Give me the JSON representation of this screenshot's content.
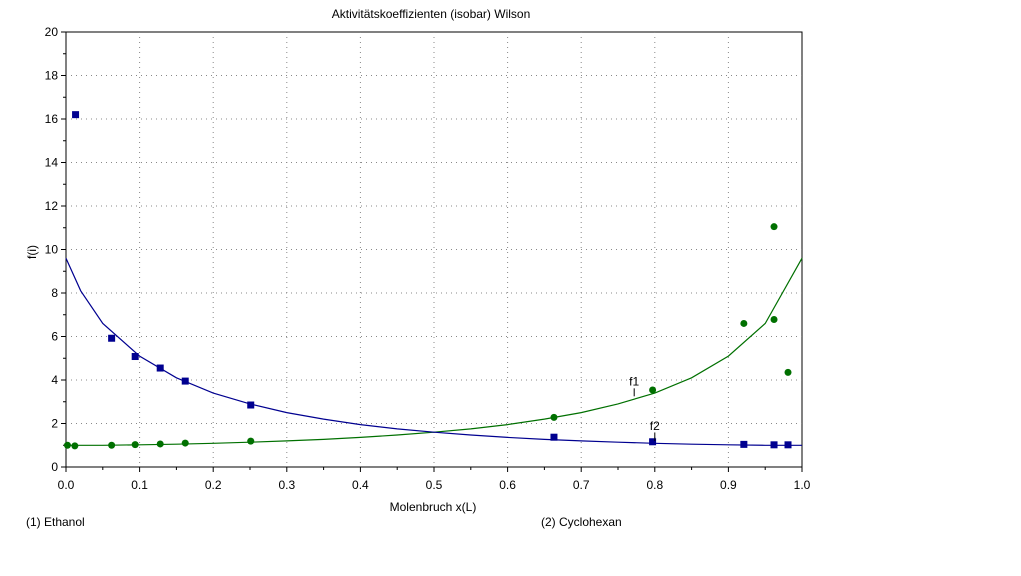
{
  "chart_data": {
    "type": "scatter",
    "title": "Aktivitätskoeffizienten (isobar) Wilson",
    "xlabel": "Molenbruch x(L)",
    "ylabel": "f(i)",
    "xlim": [
      0,
      1.0
    ],
    "ylim": [
      0,
      20
    ],
    "xticks": [
      "0.0",
      "0.1",
      "0.2",
      "0.3",
      "0.4",
      "0.5",
      "0.6",
      "0.7",
      "0.8",
      "0.9",
      "1.0"
    ],
    "yticks": [
      "0",
      "2",
      "4",
      "6",
      "8",
      "10",
      "12",
      "14",
      "16",
      "18",
      "20"
    ],
    "grid": true,
    "colors": {
      "f1": "#007000",
      "f2": "#000090"
    },
    "series": [
      {
        "name": "f1",
        "marker": "circle",
        "points": [
          [
            0.002,
            1.0
          ],
          [
            0.012,
            0.97
          ],
          [
            0.062,
            1.0
          ],
          [
            0.094,
            1.03
          ],
          [
            0.128,
            1.06
          ],
          [
            0.162,
            1.1
          ],
          [
            0.251,
            1.19
          ],
          [
            0.663,
            2.28
          ],
          [
            0.797,
            3.54
          ],
          [
            0.921,
            6.6
          ],
          [
            0.962,
            6.78
          ],
          [
            0.962,
            11.05
          ],
          [
            0.981,
            4.35
          ]
        ],
        "curve": [
          [
            0.0,
            1.0
          ],
          [
            0.05,
            1.0
          ],
          [
            0.1,
            1.02
          ],
          [
            0.15,
            1.05
          ],
          [
            0.2,
            1.09
          ],
          [
            0.25,
            1.14
          ],
          [
            0.3,
            1.2
          ],
          [
            0.35,
            1.27
          ],
          [
            0.4,
            1.36
          ],
          [
            0.45,
            1.47
          ],
          [
            0.5,
            1.6
          ],
          [
            0.55,
            1.75
          ],
          [
            0.6,
            1.95
          ],
          [
            0.65,
            2.2
          ],
          [
            0.7,
            2.5
          ],
          [
            0.75,
            2.9
          ],
          [
            0.8,
            3.4
          ],
          [
            0.85,
            4.1
          ],
          [
            0.9,
            5.1
          ],
          [
            0.95,
            6.6
          ],
          [
            1.0,
            9.6
          ]
        ],
        "label_at": [
          0.772,
          3.25
        ]
      },
      {
        "name": "f2",
        "marker": "square",
        "points": [
          [
            0.013,
            16.2
          ],
          [
            0.062,
            5.92
          ],
          [
            0.094,
            5.08
          ],
          [
            0.128,
            4.55
          ],
          [
            0.162,
            3.95
          ],
          [
            0.251,
            2.85
          ],
          [
            0.663,
            1.37
          ],
          [
            0.797,
            1.16
          ],
          [
            0.921,
            1.04
          ],
          [
            0.962,
            1.02
          ],
          [
            0.981,
            1.02
          ]
        ],
        "curve": [
          [
            0.0,
            9.6
          ],
          [
            0.02,
            8.1
          ],
          [
            0.05,
            6.6
          ],
          [
            0.1,
            5.1
          ],
          [
            0.15,
            4.1
          ],
          [
            0.2,
            3.4
          ],
          [
            0.25,
            2.9
          ],
          [
            0.3,
            2.5
          ],
          [
            0.35,
            2.2
          ],
          [
            0.4,
            1.95
          ],
          [
            0.45,
            1.75
          ],
          [
            0.5,
            1.6
          ],
          [
            0.55,
            1.47
          ],
          [
            0.6,
            1.36
          ],
          [
            0.65,
            1.27
          ],
          [
            0.7,
            1.2
          ],
          [
            0.75,
            1.14
          ],
          [
            0.8,
            1.09
          ],
          [
            0.85,
            1.05
          ],
          [
            0.9,
            1.02
          ],
          [
            0.95,
            1.0
          ],
          [
            1.0,
            1.0
          ]
        ],
        "label_at": [
          0.8,
          1.2
        ]
      }
    ],
    "components": [
      "(1) Ethanol",
      "(2) Cyclohexan"
    ]
  }
}
